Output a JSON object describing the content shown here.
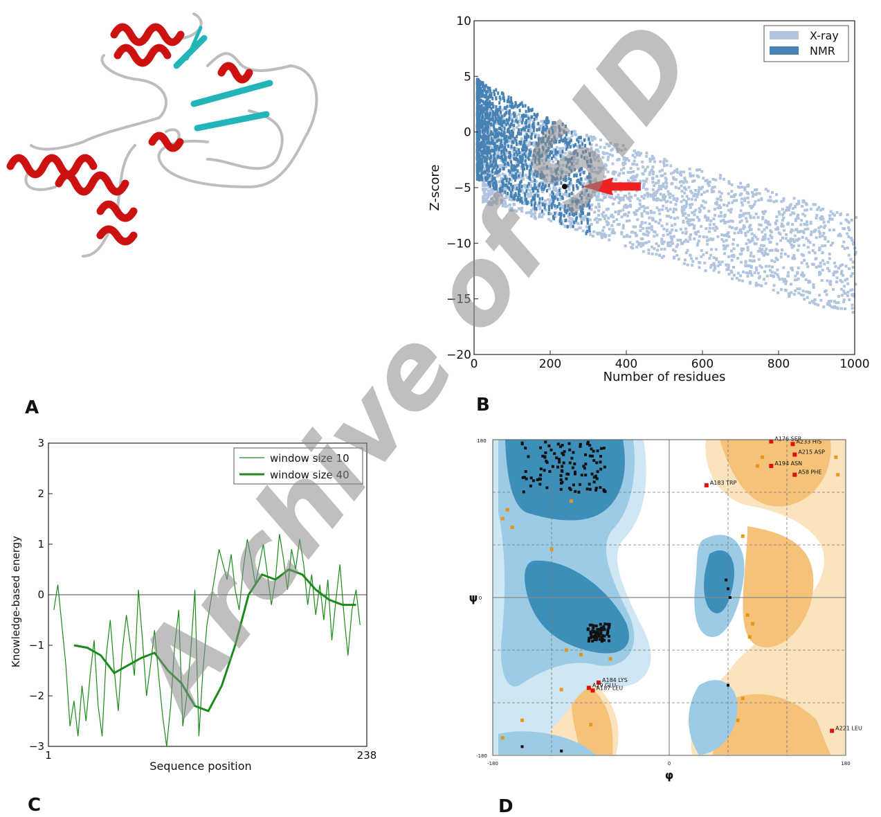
{
  "panel_letters": [
    "A",
    "B",
    "C",
    "D"
  ],
  "watermark": "Archive of SID",
  "colors": {
    "helix": "#cc1111",
    "strand": "#22b5b8",
    "coil": "#bdbdbd",
    "xray": "#b0c4de",
    "nmr": "#4682b4",
    "pointer": "#ee2222",
    "energy": "#1a8a1a",
    "rama_core": "#3d8fb9",
    "rama_allowed": "#9ccbe6",
    "rama_outer": "#cfe7f3",
    "rama_orange": "#f5c27a",
    "rama_orange_light": "#fbe3bd",
    "outlier": "#dd1111",
    "watermark": "#8a8a8a"
  },
  "chart_data": [
    {
      "panel": "B",
      "type": "scatter",
      "xlabel": "Number of residues",
      "ylabel": "Z-score",
      "xlim": [
        0,
        1000
      ],
      "ylim": [
        -20,
        10
      ],
      "xticks": [
        "0",
        "200",
        "400",
        "600",
        "800",
        "1000"
      ],
      "yticks": [
        "10",
        "5",
        "0",
        "−5",
        "−10",
        "−15",
        "−20"
      ],
      "legend": [
        "X-ray",
        "NMR"
      ],
      "legend_position": "top-right",
      "model_point": {
        "x": 238,
        "y": -4.9
      }
    },
    {
      "panel": "C",
      "type": "line",
      "xlabel": "Sequence position",
      "ylabel": "Knowledge-based energy",
      "xlim": [
        1,
        238
      ],
      "ylim": [
        -3,
        3
      ],
      "xticks": [
        "1",
        "238"
      ],
      "yticks": [
        "3",
        "2",
        "1",
        "0",
        "−1",
        "−2",
        "−3"
      ],
      "legend_position": "top-right",
      "series": [
        {
          "name": "window size 10",
          "x": [
            5,
            8,
            11,
            14,
            17,
            20,
            23,
            26,
            29,
            32,
            35,
            38,
            41,
            44,
            47,
            50,
            53,
            56,
            59,
            62,
            65,
            68,
            71,
            74,
            77,
            80,
            83,
            86,
            89,
            92,
            95,
            98,
            101,
            104,
            107,
            110,
            113,
            116,
            119,
            122,
            125,
            128,
            131,
            134,
            137,
            140,
            143,
            146,
            149,
            152,
            155,
            158,
            161,
            164,
            167,
            170,
            173,
            176,
            179,
            182,
            185,
            188,
            191,
            194,
            197,
            200,
            203,
            206,
            209,
            212,
            215,
            218,
            221,
            224,
            227,
            230,
            233
          ],
          "values": [
            -0.3,
            0.2,
            -0.6,
            -1.4,
            -2.6,
            -2.1,
            -2.8,
            -1.8,
            -2.5,
            -1.6,
            -0.9,
            -2.2,
            -2.8,
            -1.2,
            -0.5,
            -1.5,
            -2.3,
            -1.1,
            -0.4,
            -1.0,
            -1.6,
            0.1,
            -0.9,
            -2.0,
            -1.4,
            -0.7,
            -1.6,
            -2.4,
            -3.0,
            -2.2,
            -1.0,
            -0.3,
            -2.6,
            -2.0,
            -1.1,
            0.1,
            -2.8,
            -1.5,
            -0.6,
            -0.1,
            0.4,
            0.9,
            0.6,
            0.3,
            0.8,
            0.1,
            -0.3,
            0.5,
            1.1,
            0.7,
            0.2,
            0.6,
            1.0,
            0.4,
            -0.2,
            0.3,
            1.2,
            0.7,
            0.1,
            0.9,
            0.5,
            1.1,
            0.6,
            -0.2,
            0.4,
            -0.4,
            0.2,
            -0.5,
            0.3,
            -0.9,
            -0.1,
            0.6,
            -0.4,
            -1.2,
            -0.3,
            0.1,
            -0.6
          ]
        },
        {
          "name": "window size 40",
          "x": [
            20,
            30,
            40,
            50,
            60,
            70,
            80,
            90,
            100,
            110,
            120,
            130,
            140,
            150,
            160,
            170,
            180,
            190,
            200,
            210,
            220,
            230
          ],
          "values": [
            -1.0,
            -1.05,
            -1.2,
            -1.55,
            -1.4,
            -1.25,
            -1.15,
            -1.5,
            -1.75,
            -2.2,
            -2.3,
            -1.8,
            -1.0,
            0.0,
            0.4,
            0.3,
            0.5,
            0.4,
            0.1,
            -0.1,
            -0.2,
            -0.2
          ]
        }
      ]
    },
    {
      "panel": "D",
      "type": "scatter",
      "xlabel": "φ",
      "ylabel": "ψ",
      "xlim": [
        -180,
        180
      ],
      "ylim": [
        -180,
        180
      ],
      "xticks": [
        "-180",
        "0",
        "180"
      ],
      "yticks": [
        "180",
        "0",
        "-180"
      ],
      "outliers": [
        {
          "label": "A176 SER",
          "phi": 104,
          "psi": 178
        },
        {
          "label": "A233 HIS",
          "phi": 126,
          "psi": 175
        },
        {
          "label": "A215 ASP",
          "phi": 128,
          "psi": 163
        },
        {
          "label": "A194 ASN",
          "phi": 104,
          "psi": 150
        },
        {
          "label": "A58 PHE",
          "phi": 128,
          "psi": 140
        },
        {
          "label": "A183 TRP",
          "phi": 38,
          "psi": 128
        },
        {
          "label": "A184 LYS",
          "phi": -72,
          "psi": -97
        },
        {
          "label": "A29 GLU",
          "phi": -82,
          "psi": -103
        },
        {
          "label": "A187 LEU",
          "phi": -78,
          "psi": -106
        },
        {
          "label": "A221 LEU",
          "phi": 166,
          "psi": -152
        }
      ]
    }
  ]
}
